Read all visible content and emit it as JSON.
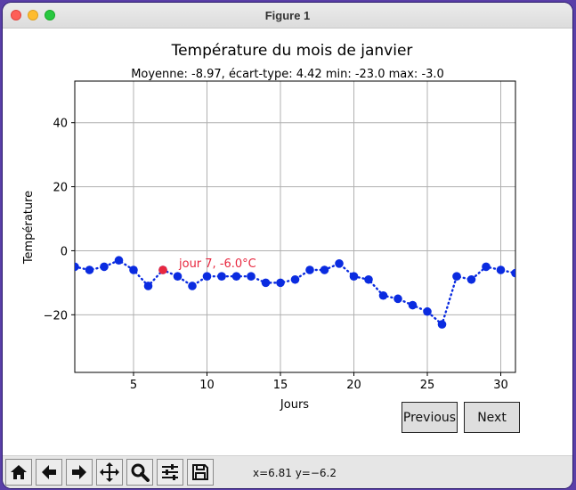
{
  "window": {
    "title": "Figure 1"
  },
  "chart_data": {
    "type": "line",
    "title": "Température du mois de janvier",
    "subtitle": "Moyenne: -8.97, écart-type: 4.42 min: -23.0 max: -3.0",
    "xlabel": "Jours",
    "ylabel": "Température",
    "xlim": [
      1,
      31
    ],
    "ylim": [
      -38,
      53
    ],
    "xticks": [
      5,
      10,
      15,
      20,
      25,
      30
    ],
    "yticks": [
      -20,
      0,
      20,
      40
    ],
    "ytick_labels": [
      "−20",
      "0",
      "20",
      "40"
    ],
    "grid": true,
    "series": [
      {
        "color": "#0a2be0",
        "linestyle": "dotted",
        "marker": "circle",
        "x": [
          1,
          2,
          3,
          4,
          5,
          6,
          7,
          8,
          9,
          10,
          11,
          12,
          13,
          14,
          15,
          16,
          17,
          18,
          19,
          20,
          21,
          22,
          23,
          24,
          25,
          26,
          27,
          28,
          29,
          30,
          31
        ],
        "y": [
          -5,
          -6,
          -5,
          -3,
          -6,
          -11,
          -6,
          -8,
          -11,
          -8,
          -8,
          -8,
          -8,
          -10,
          -10,
          -9,
          -6,
          -6,
          -4,
          -8,
          -9,
          -14,
          -15,
          -17,
          -19,
          -23,
          -8,
          -9,
          -5,
          -6,
          -7
        ]
      }
    ],
    "highlight": {
      "x": 7,
      "y": -6,
      "color": "#e8273f",
      "label": "jour 7, -6.0°C"
    }
  },
  "buttons": {
    "previous": "Previous",
    "next": "Next"
  },
  "toolbar": {
    "icons": [
      "home-icon",
      "back-arrow-icon",
      "forward-arrow-icon",
      "pan-icon",
      "zoom-icon",
      "configure-subplots-icon",
      "save-icon"
    ],
    "coords": "x=6.81 y=−6.2"
  }
}
